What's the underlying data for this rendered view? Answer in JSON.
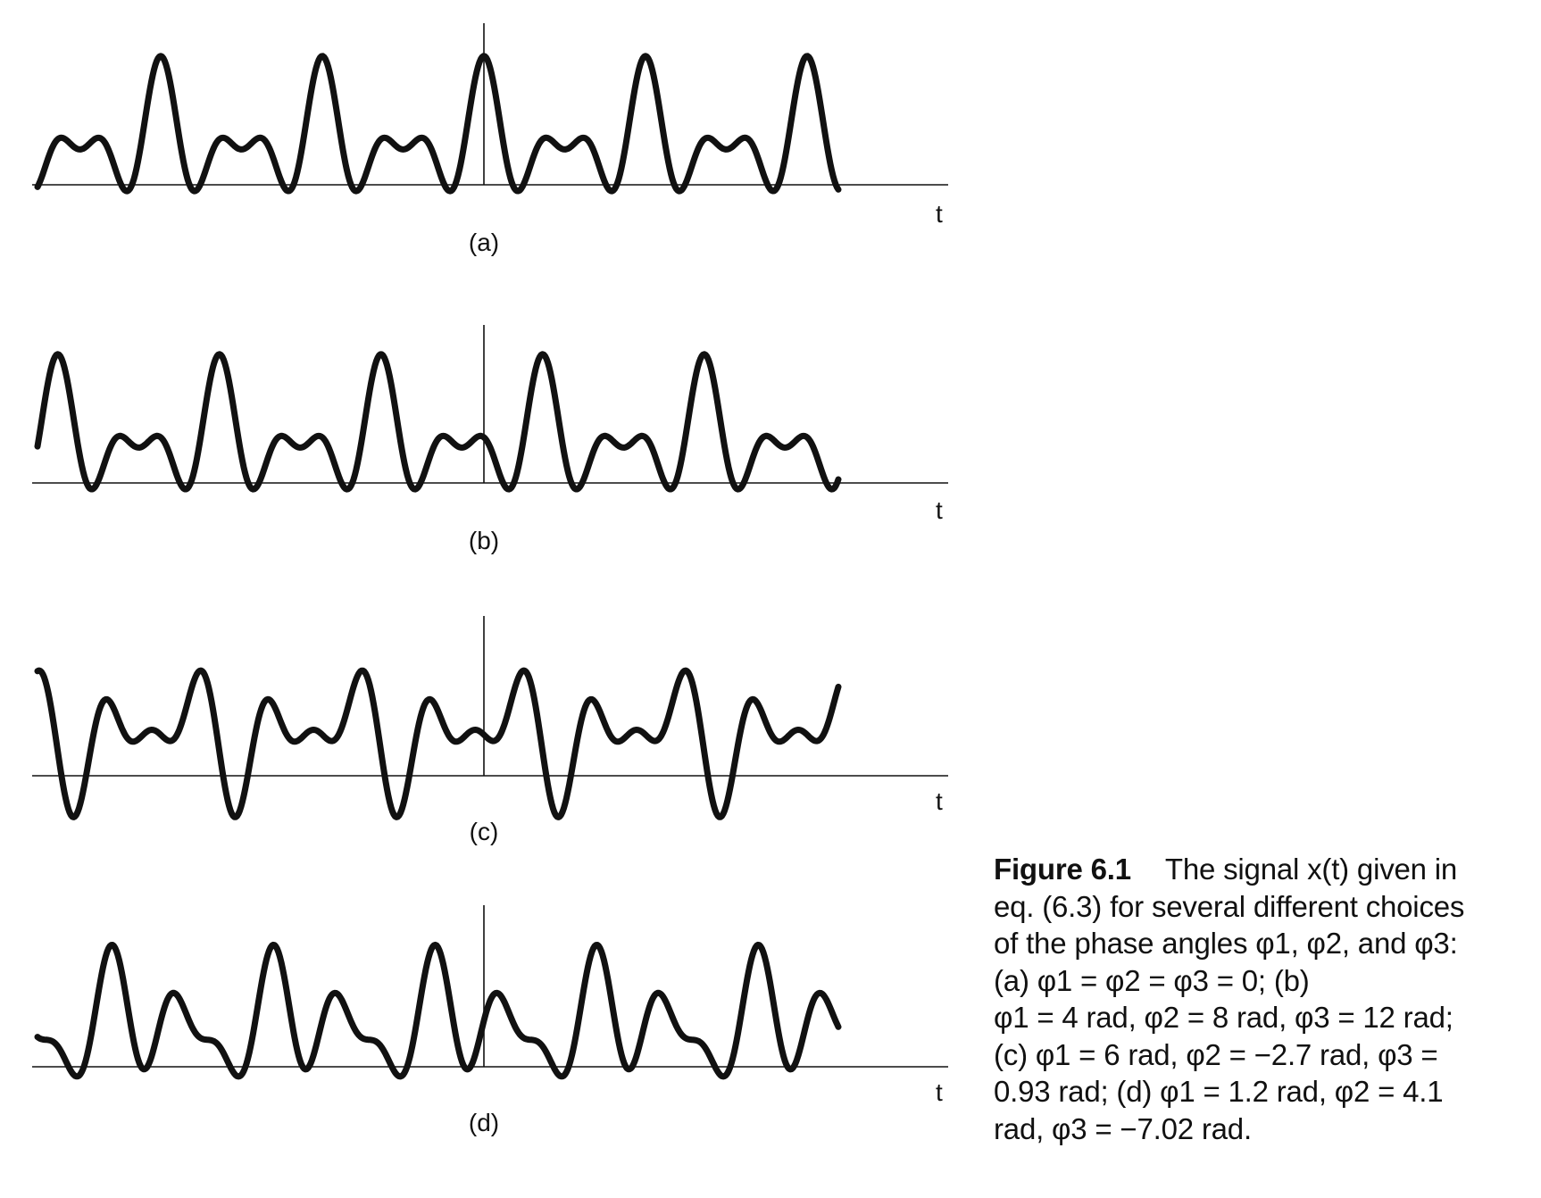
{
  "figure": {
    "panels": [
      {
        "id": "a",
        "label": "(a)",
        "axis_label": "t",
        "phases_rad": [
          0,
          0,
          0
        ]
      },
      {
        "id": "b",
        "label": "(b)",
        "axis_label": "t",
        "phases_rad": [
          4,
          8,
          12
        ]
      },
      {
        "id": "c",
        "label": "(c)",
        "axis_label": "t",
        "phases_rad": [
          6,
          -2.7,
          0.93
        ]
      },
      {
        "id": "d",
        "label": "(d)",
        "axis_label": "t",
        "phases_rad": [
          1.2,
          4.1,
          -7.02
        ]
      }
    ],
    "caption": {
      "number": "Figure 6.1",
      "lines": [
        "The signal x(t) given in",
        "eq. (6.3) for several different choices",
        "of the phase angles φ1, φ2, and φ3:",
        "(a) φ1 = φ2 = φ3 = 0; (b)",
        "φ1 = 4 rad, φ2 = 8 rad, φ3 = 12 rad;",
        "(c) φ1 = 6 rad, φ2 = −2.7 rad, φ3 =",
        "0.93 rad; (d) φ1 = 1.2 rad, φ2 = 4.1",
        "rad, φ3 = −7.02 rad."
      ]
    }
  }
}
